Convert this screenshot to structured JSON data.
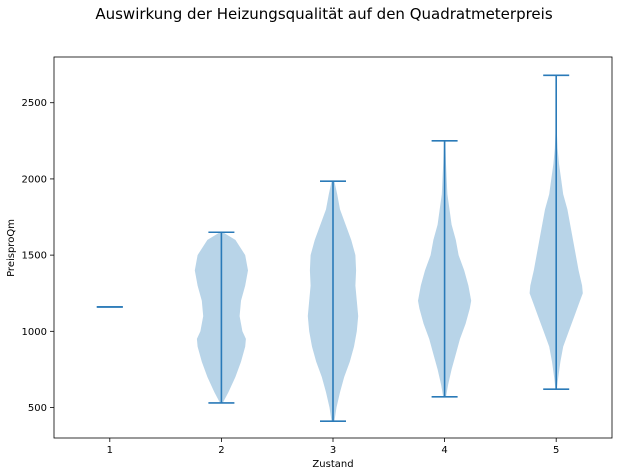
{
  "chart_data": {
    "type": "violin",
    "title": "Auswirkung der Heizungsqualität auf den Quadratmeterpreis",
    "xlabel": "Zustand",
    "ylabel": "PreisproQm",
    "categories": [
      "1",
      "2",
      "3",
      "4",
      "5"
    ],
    "xlim": [
      0.5,
      5.5
    ],
    "ylim": [
      300,
      2800
    ],
    "yticks": [
      500,
      1000,
      1500,
      2000,
      2500
    ],
    "grid": false,
    "colors": {
      "body": "#b8d4e8",
      "line": "#2a7ab8"
    },
    "violins": [
      {
        "category": "1",
        "min": 1160,
        "max": 1160,
        "density": []
      },
      {
        "category": "2",
        "min": 530,
        "max": 1650,
        "density": [
          [
            530,
            0.01
          ],
          [
            600,
            0.05
          ],
          [
            700,
            0.1
          ],
          [
            800,
            0.14
          ],
          [
            900,
            0.17
          ],
          [
            950,
            0.175
          ],
          [
            1000,
            0.15
          ],
          [
            1100,
            0.13
          ],
          [
            1200,
            0.14
          ],
          [
            1300,
            0.17
          ],
          [
            1400,
            0.19
          ],
          [
            1500,
            0.17
          ],
          [
            1600,
            0.1
          ],
          [
            1650,
            0.01
          ]
        ]
      },
      {
        "category": "3",
        "min": 410,
        "max": 1985,
        "density": [
          [
            410,
            0.01
          ],
          [
            500,
            0.025
          ],
          [
            600,
            0.05
          ],
          [
            700,
            0.08
          ],
          [
            800,
            0.12
          ],
          [
            900,
            0.15
          ],
          [
            1000,
            0.17
          ],
          [
            1100,
            0.18
          ],
          [
            1200,
            0.17
          ],
          [
            1300,
            0.16
          ],
          [
            1400,
            0.165
          ],
          [
            1500,
            0.16
          ],
          [
            1600,
            0.13
          ],
          [
            1700,
            0.09
          ],
          [
            1800,
            0.05
          ],
          [
            1900,
            0.03
          ],
          [
            1985,
            0.01
          ]
        ]
      },
      {
        "category": "4",
        "min": 570,
        "max": 2250,
        "density": [
          [
            570,
            0.01
          ],
          [
            650,
            0.025
          ],
          [
            750,
            0.05
          ],
          [
            850,
            0.08
          ],
          [
            950,
            0.11
          ],
          [
            1050,
            0.15
          ],
          [
            1150,
            0.18
          ],
          [
            1200,
            0.19
          ],
          [
            1300,
            0.17
          ],
          [
            1400,
            0.14
          ],
          [
            1500,
            0.1
          ],
          [
            1600,
            0.08
          ],
          [
            1700,
            0.05
          ],
          [
            1800,
            0.035
          ],
          [
            1900,
            0.02
          ],
          [
            2000,
            0.015
          ],
          [
            2100,
            0.01
          ],
          [
            2250,
            0.005
          ]
        ]
      },
      {
        "category": "5",
        "min": 620,
        "max": 2680,
        "density": [
          [
            620,
            0.005
          ],
          [
            700,
            0.015
          ],
          [
            800,
            0.03
          ],
          [
            900,
            0.05
          ],
          [
            1000,
            0.09
          ],
          [
            1100,
            0.13
          ],
          [
            1200,
            0.17
          ],
          [
            1250,
            0.19
          ],
          [
            1300,
            0.185
          ],
          [
            1400,
            0.16
          ],
          [
            1500,
            0.14
          ],
          [
            1600,
            0.12
          ],
          [
            1700,
            0.1
          ],
          [
            1800,
            0.08
          ],
          [
            1900,
            0.05
          ],
          [
            2000,
            0.035
          ],
          [
            2100,
            0.02
          ],
          [
            2200,
            0.01
          ],
          [
            2300,
            0.005
          ],
          [
            2500,
            0.002
          ],
          [
            2680,
            0.001
          ]
        ]
      }
    ]
  }
}
